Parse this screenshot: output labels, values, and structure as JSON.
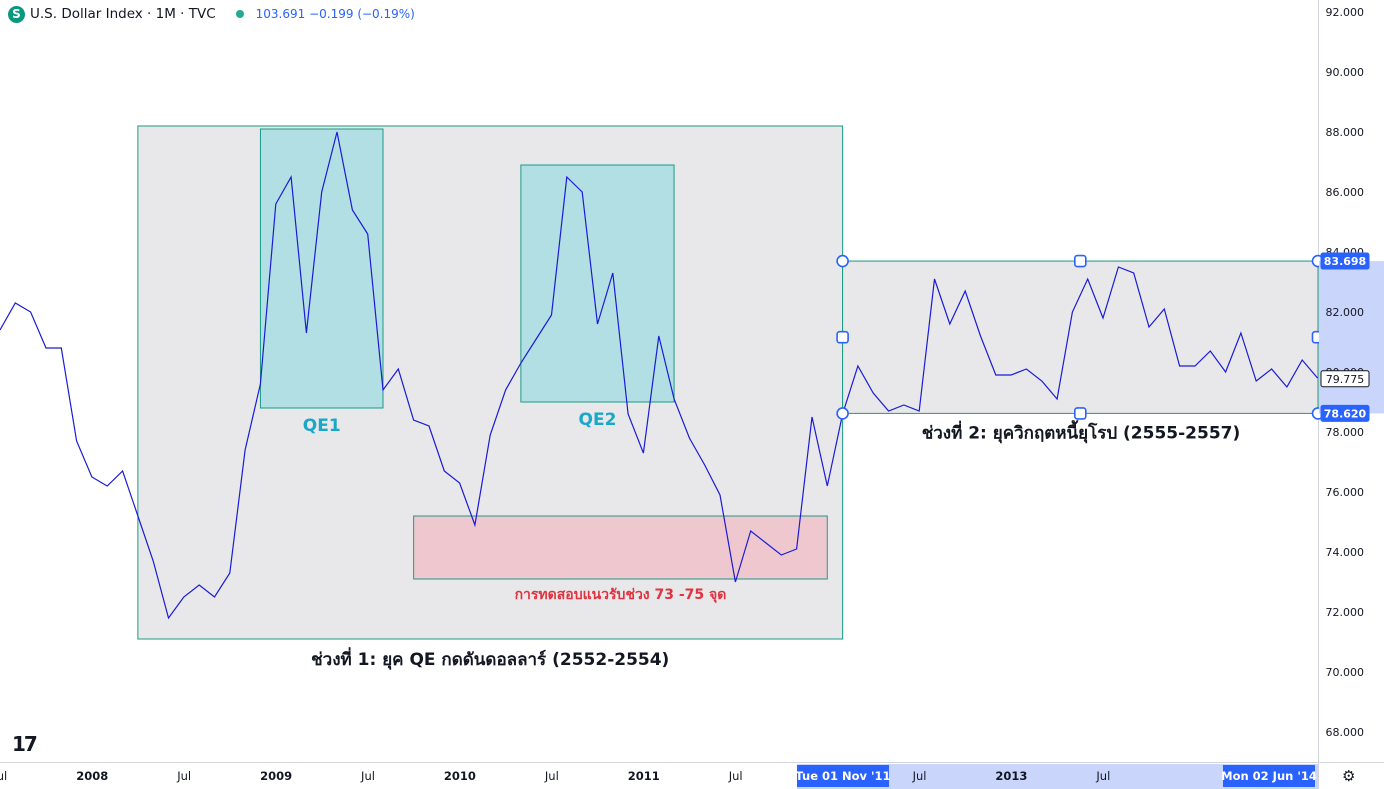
{
  "header": {
    "symbol_icon": "S",
    "title": "U.S. Dollar Index · 1M · TVC",
    "values": "103.691  −0.199 (−0.19%)"
  },
  "colors": {
    "line": "#1b1bd6",
    "qe_box_fill": "#b2dfe3",
    "qe_box_border": "#1a9b86",
    "phase_box_fill": "#e8e8ea",
    "support_fill": "#efc8cf",
    "support_label": "#e0323f",
    "qe_label": "#1aa7c8",
    "accent": "#2962ff"
  },
  "chart_data": {
    "type": "line",
    "series": [
      {
        "values": [
          81.4,
          82.3,
          82.0,
          80.8,
          80.8,
          77.7,
          76.5,
          76.2,
          76.7,
          75.2,
          73.7,
          71.8,
          72.5,
          72.9,
          72.5,
          73.3,
          77.4,
          79.6,
          85.6,
          86.5,
          81.3,
          86.0,
          88.0,
          85.4,
          84.6,
          79.4,
          80.1,
          78.4,
          78.2,
          76.7,
          76.3,
          74.9,
          77.9,
          79.4,
          80.3,
          81.1,
          81.9,
          86.5,
          86.0,
          81.6,
          83.3,
          78.6,
          77.3,
          81.2,
          79.1,
          77.8,
          76.9,
          75.9,
          73.0,
          74.7,
          74.3,
          73.9,
          74.1,
          78.5,
          76.2,
          78.6,
          80.2,
          79.3,
          78.7,
          78.9,
          78.7,
          83.1,
          81.6,
          82.7,
          81.2,
          79.9,
          79.9,
          80.1,
          79.7,
          79.1,
          82.0,
          83.1,
          81.8,
          83.5,
          83.3,
          81.5,
          82.1,
          80.2,
          80.2,
          80.7,
          80.0,
          81.3,
          79.7,
          80.1,
          79.5,
          80.4,
          79.8
        ]
      }
    ],
    "y_axis": {
      "ticks": [
        "92.000",
        "90.000",
        "88.000",
        "86.000",
        "84.000",
        "82.000",
        "80.000",
        "78.000",
        "76.000",
        "74.000",
        "72.000",
        "70.000",
        "68.000"
      ],
      "min": 67.0,
      "max": 92.4
    },
    "x_axis": {
      "ticks": [
        {
          "label": "Jul",
          "index": 1
        },
        {
          "label": "2008",
          "index": 7
        },
        {
          "label": "Jul",
          "index": 13
        },
        {
          "label": "2009",
          "index": 19
        },
        {
          "label": "Jul",
          "index": 25
        },
        {
          "label": "2010",
          "index": 31
        },
        {
          "label": "Jul",
          "index": 37
        },
        {
          "label": "2011",
          "index": 43
        },
        {
          "label": "Jul",
          "index": 49
        },
        {
          "label": "Jul",
          "index": 61
        },
        {
          "label": "2013",
          "index": 67
        },
        {
          "label": "Jul",
          "index": 73
        }
      ],
      "highlight_range": {
        "label_start": "Tue 01 Nov '11",
        "label_end": "Mon 02 Jun '14",
        "start_index": 55,
        "end_index": 86
      }
    },
    "price_labels": {
      "current": "79.775",
      "upper": "83.698",
      "lower": "78.620",
      "current_value": 79.775,
      "upper_value": 83.698,
      "lower_value": 78.62
    },
    "annotations": {
      "phase1": {
        "label": "ช่วงที่ 1: ยุค QE กดดันดอลลาร์ (2552-2554)",
        "i0": 9,
        "i1": 55,
        "y0": 71.1,
        "y1": 88.2
      },
      "phase2": {
        "label": "ช่วงที่ 2: ยุควิกฤตหนี้ยุโรป (2555-2557)",
        "i0": 55,
        "i1": 86,
        "y0": 78.62,
        "y1": 83.698
      },
      "qe1": {
        "label": "QE1",
        "i0": 17,
        "i1": 25,
        "y0": 78.8,
        "y1": 88.1
      },
      "qe2": {
        "label": "QE2",
        "i0": 34,
        "i1": 44,
        "y0": 79.0,
        "y1": 86.9
      },
      "support": {
        "label": "การทดสอบแนวรับช่วง 73 -75 จุด",
        "i0": 27,
        "i1": 54,
        "y0": 73.1,
        "y1": 75.2
      }
    }
  },
  "branding": {
    "logo": "17",
    "logo_icon": "tradingview-logo-icon",
    "settings_icon": "gear-icon",
    "settings_glyph": "⚙"
  }
}
